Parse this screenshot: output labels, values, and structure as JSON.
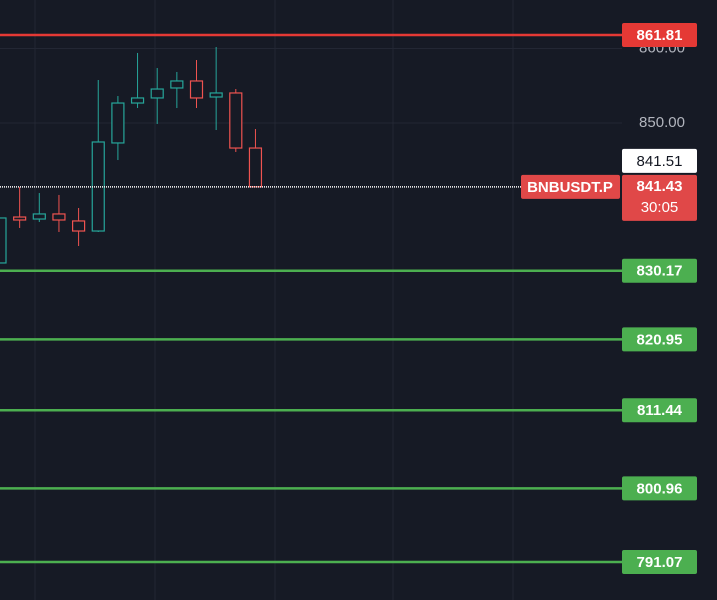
{
  "chart_data": {
    "type": "candlestick",
    "ylim": [
      785.97,
      866.51
    ],
    "yticks": [
      {
        "value": 860,
        "label": "860.00"
      },
      {
        "value": 850,
        "label": "850.00"
      }
    ],
    "grid": true,
    "open": [
      831.21,
      837.38,
      837.11,
      837.79,
      836.85,
      835.5,
      847.32,
      852.68,
      853.36,
      854.7,
      855.64,
      853.49,
      854.03,
      846.64
    ],
    "high": [
      837.25,
      841.41,
      840.6,
      840.34,
      838.59,
      855.77,
      853.62,
      859.4,
      857.38,
      856.85,
      858.46,
      860.2,
      854.56,
      849.19
    ],
    "low": [
      831.21,
      835.91,
      836.71,
      835.37,
      833.49,
      835.37,
      845.03,
      852.01,
      849.87,
      852.01,
      852.01,
      849.06,
      846.11,
      841.43
    ],
    "close": [
      837.25,
      836.98,
      837.79,
      836.98,
      835.5,
      847.45,
      852.68,
      853.36,
      854.56,
      855.64,
      853.36,
      854.03,
      846.64,
      841.43
    ],
    "up_color": "#26a69a",
    "down_color": "#ef5350",
    "levels": [
      861.81,
      830.17,
      820.95,
      811.44,
      800.96,
      791.07
    ],
    "level_colors": [
      "#e53935",
      "#4caf50",
      "#4caf50",
      "#4caf50",
      "#4caf50",
      "#4caf50"
    ],
    "current": {
      "symbol": "BNBUSDT.P",
      "price": 841.43,
      "countdown": "30:05",
      "color": "#e04848"
    },
    "other_price": 841.51
  }
}
